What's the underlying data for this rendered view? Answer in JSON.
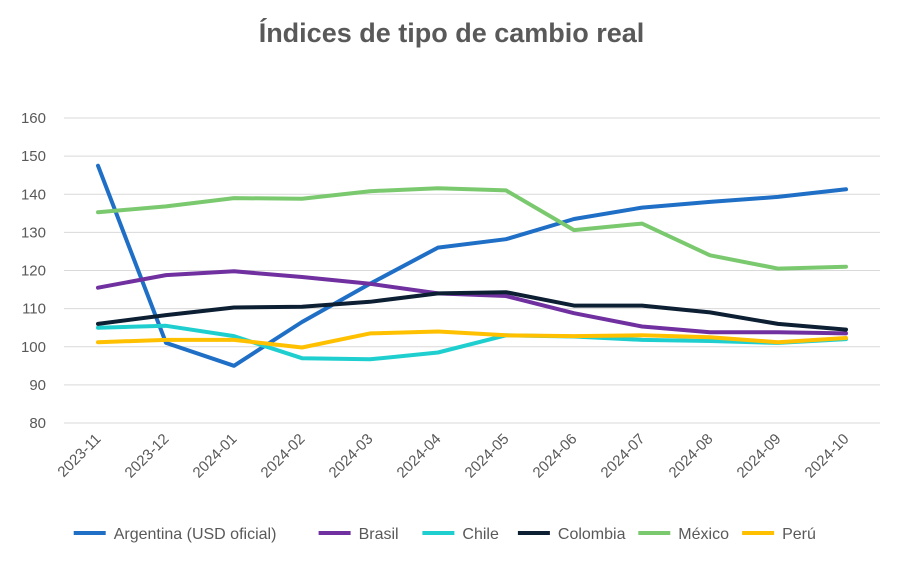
{
  "chart_data": {
    "type": "line",
    "title": "Índices de tipo de cambio real",
    "xlabel": "",
    "ylabel": "",
    "ylim": [
      80,
      160
    ],
    "yticks": [
      80,
      90,
      100,
      110,
      120,
      130,
      140,
      150,
      160
    ],
    "grid": true,
    "legend": "bottom",
    "categories": [
      "2023-11",
      "2023-12",
      "2024-01",
      "2024-02",
      "2024-03",
      "2024-04",
      "2024-05",
      "2024-06",
      "2024-07",
      "2024-08",
      "2024-09",
      "2024-10"
    ],
    "series": [
      {
        "name": "Argentina (USD oficial)",
        "color": "#1f6fc6",
        "values": [
          147.5,
          101,
          95,
          106.5,
          116.5,
          126,
          128.2,
          133.5,
          136.5,
          138,
          139.3,
          141.3
        ]
      },
      {
        "name": "Brasil",
        "color": "#7030a0",
        "values": [
          115.5,
          118.8,
          119.8,
          118.3,
          116.5,
          114,
          113.3,
          108.8,
          105.3,
          103.8,
          103.8,
          103.5
        ]
      },
      {
        "name": "Chile",
        "color": "#1fcfcf",
        "values": [
          105,
          105.5,
          102.8,
          97,
          96.7,
          98.5,
          103,
          102.7,
          101.8,
          101.5,
          101,
          102
        ]
      },
      {
        "name": "Colombia",
        "color": "#0d1f33",
        "values": [
          106,
          108.3,
          110.3,
          110.5,
          111.8,
          114,
          114.3,
          110.8,
          110.8,
          109,
          106,
          104.5
        ]
      },
      {
        "name": "México",
        "color": "#7bc96f",
        "values": [
          135.3,
          136.8,
          139,
          138.8,
          140.8,
          141.6,
          141,
          130.6,
          132.3,
          124,
          120.5,
          121
        ]
      },
      {
        "name": "Perú",
        "color": "#ffc000",
        "values": [
          101.2,
          101.8,
          101.8,
          99.8,
          103.5,
          104,
          103,
          102.8,
          103,
          102.5,
          101.2,
          102.3
        ]
      }
    ]
  }
}
